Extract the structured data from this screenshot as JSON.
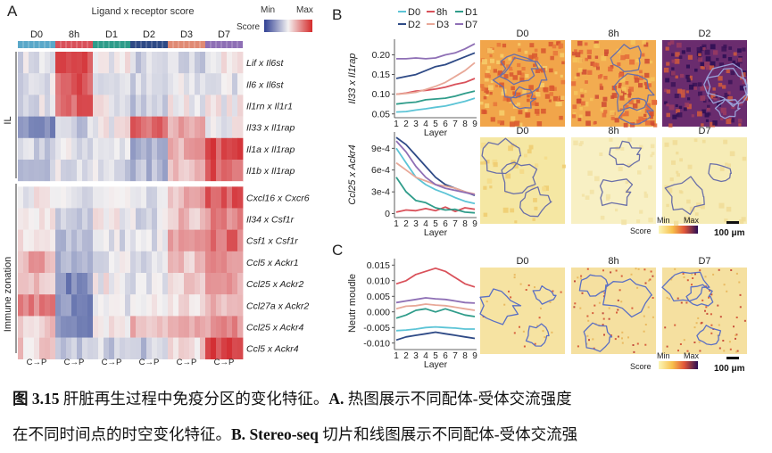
{
  "figure": {
    "panelA": {
      "label": "A",
      "title": "Ligand x receptor score",
      "timepoints": [
        "D0",
        "8h",
        "D1",
        "D2",
        "D3",
        "D7"
      ],
      "timepoint_colors": [
        "#5aa8c9",
        "#d9515a",
        "#2f9c8a",
        "#2e4a86",
        "#e08a74",
        "#8e6fb5"
      ],
      "legend": {
        "label": "Score",
        "min": "Min",
        "max": "Max"
      },
      "group_il": "IL",
      "group_immune": "Immune zonation",
      "rows": [
        "Lif x Il6st",
        "Il6 x Il6st",
        "Il1rn x Il1r1",
        "Il33 x Il1rap",
        "Il1a x Il1rap",
        "Il1b x Il1rap",
        "Cxcl16 x Cxcr6",
        "Il34 x Csf1r",
        "Csf1 x Csf1r",
        "Ccl5 x Ackr1",
        "Ccl25 x Ackr2",
        "Ccl27a x Ackr2",
        "Ccl25 x Ackr4",
        "Ccl5 x Ackr4"
      ],
      "axis_label": "C→P"
    },
    "panelB": {
      "label": "B",
      "legend_top": [
        "D0",
        "8h",
        "D1"
      ],
      "legend_bottom": [
        "D2",
        "D3",
        "D7"
      ],
      "series_colors": {
        "D0": "#5cc4d6",
        "8h": "#d9515a",
        "D1": "#2f9c8a",
        "D2": "#2e4a86",
        "D3": "#e8a898",
        "D7": "#8e6fb5"
      },
      "maps_row1": [
        "D0",
        "8h",
        "D2"
      ],
      "maps_row2": [
        "D0",
        "8h",
        "D7"
      ],
      "scale_min": "Min",
      "scale_max": "Max",
      "scale_title": "Score",
      "scale_bar": "100 μm"
    },
    "panelC": {
      "label": "C",
      "maps": [
        "D0",
        "8h",
        "D7"
      ],
      "scale_min": "Min",
      "scale_max": "Max",
      "scale_title": "Score",
      "scale_bar": "100 μm"
    }
  },
  "chart_data": [
    {
      "type": "line",
      "title": "",
      "xlabel": "Layer",
      "ylabel": "Il33 x Il1rap",
      "x": [
        1,
        2,
        3,
        4,
        5,
        6,
        7,
        8,
        9
      ],
      "xticks": [
        "1",
        "2",
        "3",
        "4",
        "5",
        "6",
        "7",
        "8",
        "9"
      ],
      "yticks": [
        "0.05",
        "0.10",
        "0.15",
        "0.20"
      ],
      "ytick_values": [
        0.05,
        0.1,
        0.15,
        0.2
      ],
      "ylim": [
        0.045,
        0.235
      ],
      "series": [
        {
          "name": "D0",
          "values": [
            0.055,
            0.056,
            0.06,
            0.063,
            0.067,
            0.07,
            0.076,
            0.082,
            0.09
          ]
        },
        {
          "name": "8h",
          "values": [
            0.1,
            0.103,
            0.108,
            0.11,
            0.113,
            0.118,
            0.125,
            0.13,
            0.14
          ]
        },
        {
          "name": "D1",
          "values": [
            0.075,
            0.078,
            0.08,
            0.086,
            0.088,
            0.09,
            0.095,
            0.102,
            0.108
          ]
        },
        {
          "name": "D2",
          "values": [
            0.14,
            0.145,
            0.15,
            0.16,
            0.17,
            0.175,
            0.185,
            0.195,
            0.205
          ]
        },
        {
          "name": "D3",
          "values": [
            0.1,
            0.102,
            0.105,
            0.112,
            0.12,
            0.13,
            0.145,
            0.16,
            0.18
          ]
        },
        {
          "name": "D7",
          "values": [
            0.19,
            0.19,
            0.192,
            0.19,
            0.192,
            0.2,
            0.205,
            0.215,
            0.228
          ]
        }
      ]
    },
    {
      "type": "line",
      "title": "",
      "xlabel": "Layer",
      "ylabel": "Ccl25 x Ackr4",
      "x": [
        1,
        2,
        3,
        4,
        5,
        6,
        7,
        8,
        9
      ],
      "xticks": [
        "1",
        "2",
        "3",
        "4",
        "5",
        "6",
        "7",
        "8",
        "9"
      ],
      "yticks": [
        "0",
        "3e-4",
        "6e-4",
        "9e-4"
      ],
      "ytick_values": [
        0,
        0.0003,
        0.0006,
        0.0009
      ],
      "ylim": [
        -3e-05,
        0.0011
      ],
      "series": [
        {
          "name": "D0",
          "values": [
            0.0009,
            0.0007,
            0.0005,
            0.0004,
            0.00033,
            0.00028,
            0.00022,
            0.00017,
            0.00014
          ]
        },
        {
          "name": "8h",
          "values": [
            2e-05,
            5e-05,
            4e-05,
            7e-05,
            4e-05,
            9e-05,
            3e-05,
            8e-05,
            6e-05
          ]
        },
        {
          "name": "D1",
          "values": [
            0.0005,
            0.0003,
            0.00018,
            0.00015,
            8e-05,
            5e-05,
            6e-05,
            2e-05,
            1e-05
          ]
        },
        {
          "name": "D2",
          "values": [
            0.00105,
            0.00095,
            0.0008,
            0.00065,
            0.0005,
            0.0004,
            0.00035,
            0.0003,
            0.00025
          ]
        },
        {
          "name": "D3",
          "values": [
            0.0007,
            0.0006,
            0.0005,
            0.00045,
            0.0004,
            0.00038,
            0.00035,
            0.0003,
            0.00027
          ]
        },
        {
          "name": "D7",
          "values": [
            0.001,
            0.00085,
            0.00065,
            0.0005,
            0.0004,
            0.00035,
            0.00032,
            0.00029,
            0.00026
          ]
        }
      ]
    },
    {
      "type": "line",
      "title": "",
      "xlabel": "Layer",
      "ylabel": "Neutr moudle",
      "x": [
        1,
        2,
        3,
        4,
        5,
        6,
        7,
        8,
        9
      ],
      "xticks": [
        "1",
        "2",
        "3",
        "4",
        "5",
        "6",
        "7",
        "8",
        "9"
      ],
      "yticks": [
        "0.015",
        "0.010",
        "0.005",
        "0.000",
        "-0.005",
        "-0.010"
      ],
      "ytick_values": [
        0.015,
        0.01,
        0.005,
        0.0,
        -0.005,
        -0.01
      ],
      "ylim": [
        -0.0115,
        0.0165
      ],
      "series": [
        {
          "name": "D0",
          "values": [
            -0.006,
            -0.0058,
            -0.0055,
            -0.005,
            -0.0048,
            -0.005,
            -0.0052,
            -0.0055,
            -0.0055
          ]
        },
        {
          "name": "8h",
          "values": [
            0.009,
            0.01,
            0.012,
            0.013,
            0.014,
            0.013,
            0.011,
            0.009,
            0.008
          ]
        },
        {
          "name": "D1",
          "values": [
            -0.002,
            -0.001,
            0.0005,
            0.001,
            0.0,
            0.001,
            0.0,
            -0.001,
            -0.0015
          ]
        },
        {
          "name": "D2",
          "values": [
            -0.009,
            -0.008,
            -0.0075,
            -0.007,
            -0.0065,
            -0.007,
            -0.0075,
            -0.008,
            -0.0085
          ]
        },
        {
          "name": "D3",
          "values": [
            0.001,
            0.0018,
            0.002,
            0.0025,
            0.0022,
            0.002,
            0.0015,
            0.001,
            0.0005
          ]
        },
        {
          "name": "D7",
          "values": [
            0.003,
            0.0035,
            0.004,
            0.0045,
            0.0042,
            0.004,
            0.0035,
            0.003,
            0.0028
          ]
        }
      ]
    }
  ],
  "caption": {
    "line1_num": "图 3.15",
    "line1_text": " 肝脏再生过程中免疫分区的变化特征。",
    "line1_a": "A.",
    "line1_rest": " 热图展示不同配体-受体交流强度",
    "line2_text": "在不同时间点的时空变化特征。",
    "line2_b": "B.",
    "line2_mid": " ",
    "line2_stereo": "Stereo-seq",
    "line2_rest": " 切片和线图展示不同配体-受体交流强"
  }
}
